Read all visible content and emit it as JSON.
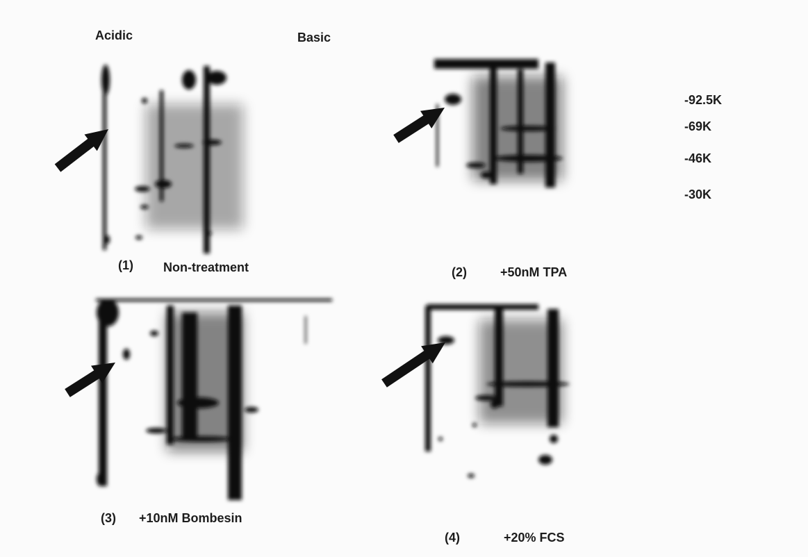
{
  "header": {
    "left": "Acidic",
    "right": "Basic"
  },
  "markers": [
    "-92.5K",
    "-69K",
    "-46K",
    "-30K"
  ],
  "panels": [
    {
      "number": "(1)",
      "label": "Non-treatment"
    },
    {
      "number": "(2)",
      "label": "+50nM TPA"
    },
    {
      "number": "(3)",
      "label": "+10nM Bombesin"
    },
    {
      "number": "(4)",
      "label": "+20% FCS"
    }
  ]
}
